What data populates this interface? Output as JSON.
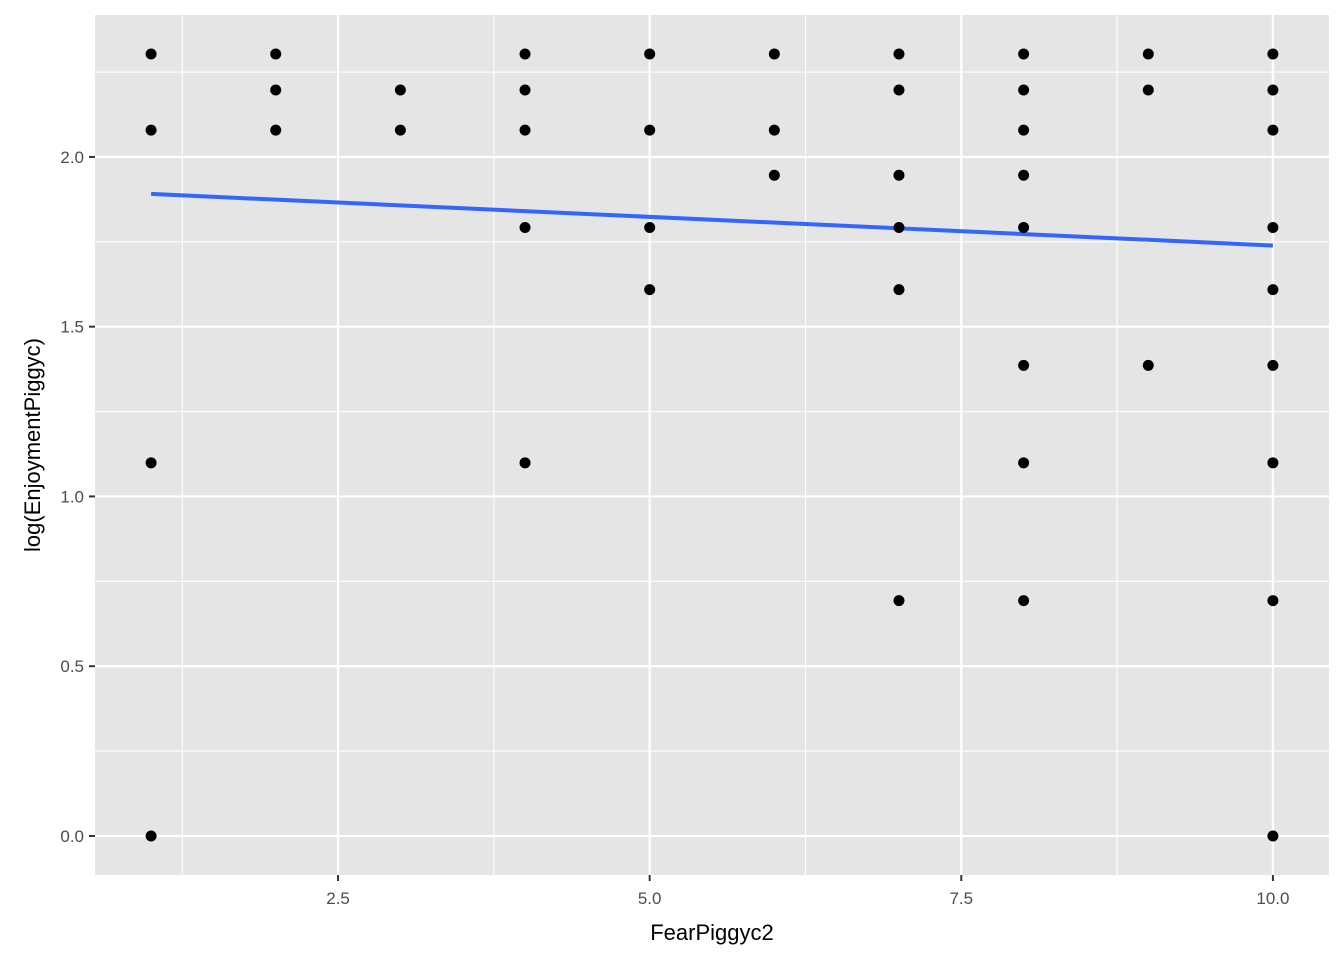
{
  "chart_data": {
    "type": "scatter",
    "title": "",
    "xlabel": "FearPiggyc2",
    "ylabel": "log(EnjoymentPiggyc)",
    "xlim": [
      0.55,
      10.45
    ],
    "ylim": [
      -0.115,
      2.418
    ],
    "x_ticks": [
      2.5,
      5.0,
      7.5,
      10.0
    ],
    "x_tick_labels": [
      "2.5",
      "5.0",
      "7.5",
      "10.0"
    ],
    "y_ticks": [
      0.0,
      0.5,
      1.0,
      1.5,
      2.0
    ],
    "y_tick_labels": [
      "0.0",
      "0.5",
      "1.0",
      "1.5",
      "2.0"
    ],
    "grid": true,
    "colors": {
      "panel_background": "#e5e5e5",
      "grid": "#ffffff",
      "points": "#000000",
      "trend_line": "#3366ff"
    },
    "points": [
      {
        "x": 1,
        "y": 2.303
      },
      {
        "x": 1,
        "y": 2.079
      },
      {
        "x": 1,
        "y": 1.099
      },
      {
        "x": 1,
        "y": 0.0
      },
      {
        "x": 2,
        "y": 2.303
      },
      {
        "x": 2,
        "y": 2.197
      },
      {
        "x": 2,
        "y": 2.079
      },
      {
        "x": 3,
        "y": 2.197
      },
      {
        "x": 3,
        "y": 2.079
      },
      {
        "x": 4,
        "y": 2.303
      },
      {
        "x": 4,
        "y": 2.197
      },
      {
        "x": 4,
        "y": 2.079
      },
      {
        "x": 4,
        "y": 1.792
      },
      {
        "x": 4,
        "y": 1.099
      },
      {
        "x": 5,
        "y": 2.303
      },
      {
        "x": 5,
        "y": 2.079
      },
      {
        "x": 5,
        "y": 1.792
      },
      {
        "x": 5,
        "y": 1.609
      },
      {
        "x": 6,
        "y": 2.303
      },
      {
        "x": 6,
        "y": 2.079
      },
      {
        "x": 6,
        "y": 1.946
      },
      {
        "x": 7,
        "y": 2.303
      },
      {
        "x": 7,
        "y": 2.197
      },
      {
        "x": 7,
        "y": 1.946
      },
      {
        "x": 7,
        "y": 1.792
      },
      {
        "x": 7,
        "y": 1.609
      },
      {
        "x": 7,
        "y": 0.693
      },
      {
        "x": 8,
        "y": 2.303
      },
      {
        "x": 8,
        "y": 2.197
      },
      {
        "x": 8,
        "y": 2.079
      },
      {
        "x": 8,
        "y": 1.946
      },
      {
        "x": 8,
        "y": 1.792
      },
      {
        "x": 8,
        "y": 1.386
      },
      {
        "x": 8,
        "y": 1.099
      },
      {
        "x": 8,
        "y": 0.693
      },
      {
        "x": 9,
        "y": 2.303
      },
      {
        "x": 9,
        "y": 2.197
      },
      {
        "x": 9,
        "y": 1.386
      },
      {
        "x": 10,
        "y": 2.303
      },
      {
        "x": 10,
        "y": 2.197
      },
      {
        "x": 10,
        "y": 2.079
      },
      {
        "x": 10,
        "y": 1.792
      },
      {
        "x": 10,
        "y": 1.609
      },
      {
        "x": 10,
        "y": 1.386
      },
      {
        "x": 10,
        "y": 1.099
      },
      {
        "x": 10,
        "y": 0.693
      },
      {
        "x": 10,
        "y": 0.0
      }
    ],
    "trend_line": {
      "x": [
        1,
        10
      ],
      "y": [
        1.891,
        1.739
      ]
    }
  }
}
